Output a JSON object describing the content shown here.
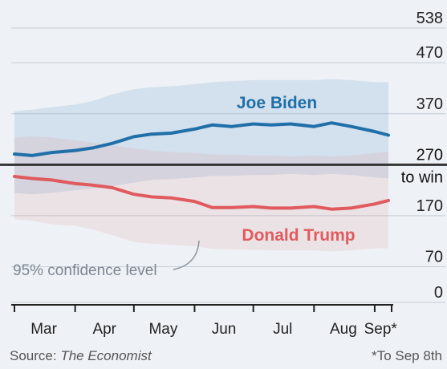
{
  "chart_data": {
    "type": "line",
    "title_partial": "",
    "y_ticks": [
      0,
      70,
      170,
      270,
      370,
      470,
      538
    ],
    "threshold": {
      "value": 270,
      "label": "to win"
    },
    "ylim": [
      0,
      538
    ],
    "x_ticks": [
      "Mar",
      "Apr",
      "May",
      "Jun",
      "Jul",
      "Aug",
      "Sep*"
    ],
    "series": [
      {
        "name": "Joe Biden",
        "color": "#1f6fa8",
        "x": [
          "Mar 1",
          "Mar 10",
          "Mar 20",
          "Apr 1",
          "Apr 10",
          "Apr 20",
          "May 1",
          "May 10",
          "May 20",
          "Jun 1",
          "Jun 10",
          "Jun 20",
          "Jul 1",
          "Jul 10",
          "Jul 20",
          "Aug 1",
          "Aug 10",
          "Aug 20",
          "Sep 1",
          "Sep 8"
        ],
        "values": [
          291,
          288,
          294,
          298,
          303,
          312,
          325,
          330,
          332,
          340,
          348,
          345,
          350,
          348,
          350,
          345,
          352,
          345,
          335,
          328
        ],
        "ci_low": [
          215,
          212,
          215,
          220,
          223,
          228,
          235,
          240,
          242,
          245,
          248,
          248,
          250,
          250,
          252,
          250,
          252,
          250,
          245,
          243
        ],
        "ci_high": [
          375,
          378,
          383,
          388,
          395,
          408,
          418,
          422,
          424,
          428,
          432,
          434,
          436,
          436,
          436,
          436,
          438,
          436,
          432,
          432
        ]
      },
      {
        "name": "Donald Trump",
        "color": "#e05a5e",
        "x": [
          "Mar 1",
          "Mar 10",
          "Mar 20",
          "Apr 1",
          "Apr 10",
          "Apr 20",
          "May 1",
          "May 10",
          "May 20",
          "Jun 1",
          "Jun 10",
          "Jun 20",
          "Jul 1",
          "Jul 10",
          "Jul 20",
          "Aug 1",
          "Aug 10",
          "Aug 20",
          "Sep 1",
          "Sep 8"
        ],
        "values": [
          247,
          243,
          240,
          233,
          230,
          225,
          212,
          207,
          205,
          198,
          186,
          186,
          188,
          185,
          185,
          188,
          183,
          185,
          193,
          200
        ],
        "ci_low": [
          163,
          160,
          153,
          150,
          143,
          132,
          118,
          115,
          113,
          110,
          105,
          104,
          103,
          102,
          102,
          102,
          100,
          102,
          106,
          106
        ],
        "ci_high": [
          323,
          326,
          323,
          318,
          313,
          308,
          302,
          298,
          295,
          293,
          290,
          290,
          288,
          288,
          286,
          288,
          286,
          288,
          293,
          295
        ]
      }
    ],
    "annotations": {
      "ci_label": "95% confidence level"
    }
  },
  "footer": {
    "source_prefix": "Source: ",
    "source_name": "The Economist",
    "note": "*To Sep 8th"
  }
}
